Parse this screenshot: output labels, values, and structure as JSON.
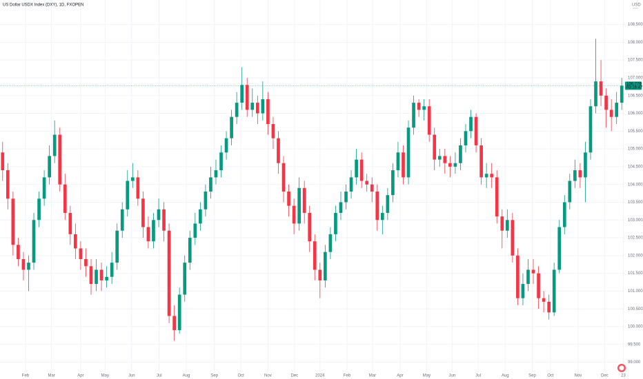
{
  "chart_data": {
    "type": "candlestick",
    "title": "US Dollar USDX Index (DXY), 1D, FXOPEN",
    "currency": "USD",
    "countdown": "03:16:47",
    "up_color": "#089981",
    "down_color": "#f23645",
    "grid": true,
    "x": [
      0,
      1,
      2,
      3,
      4,
      5,
      6,
      7,
      8,
      9,
      10,
      11,
      12,
      13,
      14,
      15,
      16,
      17,
      18,
      19,
      20,
      21,
      22,
      23,
      24,
      25,
      26,
      27,
      28,
      29,
      30,
      31,
      32,
      33,
      34,
      35,
      36,
      37,
      38,
      39,
      40,
      41,
      42,
      43,
      44,
      45,
      46,
      47,
      48,
      49,
      50,
      51,
      52,
      53,
      54,
      55,
      56,
      57,
      58,
      59,
      60,
      61,
      62,
      63,
      64,
      65,
      66,
      67,
      68,
      69,
      70,
      71,
      72,
      73,
      74,
      75,
      76,
      77,
      78,
      79,
      80,
      81,
      82,
      83,
      84,
      85,
      86,
      87,
      88,
      89,
      90,
      91,
      92,
      93,
      94,
      95,
      96,
      97,
      98,
      99,
      100,
      101,
      102,
      103,
      104,
      105,
      106,
      107,
      108,
      109,
      110,
      111,
      112,
      113,
      114,
      115,
      116,
      117,
      118,
      119
    ],
    "open": [
      104.9,
      104.4,
      103.6,
      102.3,
      101.9,
      101.6,
      101.8,
      103.0,
      103.6,
      104.2,
      104.8,
      105.4,
      104.0,
      103.2,
      102.6,
      102.2,
      101.9,
      101.7,
      101.2,
      101.6,
      101.3,
      101.4,
      101.8,
      102.7,
      103.3,
      104.1,
      104.2,
      103.6,
      102.8,
      102.4,
      103.0,
      103.3,
      102.7,
      100.3,
      99.9,
      100.9,
      101.8,
      102.5,
      102.9,
      103.3,
      103.8,
      104.2,
      104.4,
      104.9,
      105.3,
      105.9,
      106.3,
      106.8,
      106.1,
      106.3,
      106.0,
      106.4,
      105.7,
      105.3,
      104.6,
      103.8,
      103.4,
      102.9,
      103.9,
      103.2,
      102.4,
      101.6,
      101.3,
      102.1,
      102.6,
      103.2,
      103.5,
      103.8,
      104.2,
      104.7,
      104.1,
      104.0,
      103.8,
      103.0,
      103.2,
      103.7,
      104.4,
      104.9,
      104.2,
      105.6,
      106.3,
      106.1,
      106.2,
      105.4,
      104.7,
      104.8,
      104.6,
      104.5,
      104.6,
      105.1,
      105.5,
      105.9,
      105.1,
      104.2,
      104.3,
      104.2,
      103.1,
      102.7,
      103.0,
      102.0,
      100.8,
      101.2,
      101.6,
      101.5,
      100.8,
      100.7,
      100.4,
      101.6,
      102.8,
      103.5,
      104.1,
      104.4,
      104.2,
      104.9,
      106.2,
      106.9,
      106.5,
      106.1,
      105.9,
      106.3
    ],
    "high": [
      105.2,
      104.6,
      103.8,
      102.5,
      102.1,
      102.0,
      103.2,
      103.8,
      104.4,
      105.1,
      105.8,
      105.6,
      104.3,
      103.4,
      102.9,
      102.4,
      102.2,
      101.9,
      101.9,
      101.8,
      101.7,
      102.1,
      102.9,
      103.5,
      104.4,
      104.6,
      104.4,
      103.8,
      103.1,
      103.2,
      103.6,
      103.5,
      102.9,
      100.6,
      101.1,
      102.0,
      102.7,
      103.2,
      103.5,
      104.0,
      104.5,
      104.7,
      105.1,
      105.5,
      106.1,
      106.6,
      107.3,
      107.0,
      106.7,
      106.5,
      106.9,
      106.6,
      105.9,
      105.5,
      104.8,
      104.0,
      103.6,
      104.2,
      104.1,
      103.4,
      102.6,
      101.8,
      102.3,
      102.8,
      103.4,
      103.8,
      104.0,
      104.4,
      105.0,
      104.9,
      104.3,
      104.2,
      104.0,
      103.4,
      103.9,
      104.6,
      105.2,
      105.1,
      105.8,
      106.5,
      106.4,
      106.4,
      106.4,
      105.6,
      105.0,
      105.0,
      104.8,
      104.9,
      105.3,
      105.7,
      106.1,
      106.0,
      105.3,
      104.6,
      104.6,
      104.4,
      103.3,
      103.3,
      103.2,
      102.2,
      101.5,
      101.9,
      101.9,
      101.7,
      101.0,
      100.9,
      101.8,
      103.0,
      103.7,
      104.3,
      104.7,
      104.6,
      105.2,
      106.4,
      108.1,
      107.5,
      106.7,
      106.4,
      106.6,
      107.0
    ],
    "low": [
      104.1,
      103.3,
      102.0,
      101.7,
      101.3,
      101.0,
      101.6,
      102.8,
      103.4,
      104.0,
      104.6,
      103.8,
      103.0,
      102.3,
      101.9,
      101.6,
      101.4,
      100.9,
      101.0,
      101.0,
      101.1,
      101.2,
      101.6,
      102.5,
      103.1,
      103.9,
      103.4,
      102.5,
      102.2,
      102.2,
      102.8,
      102.4,
      100.1,
      99.6,
      99.8,
      100.7,
      101.6,
      102.3,
      102.7,
      103.1,
      103.6,
      104.0,
      104.2,
      104.7,
      105.1,
      105.7,
      106.1,
      105.9,
      105.9,
      105.7,
      105.8,
      105.4,
      105.0,
      104.3,
      103.5,
      103.1,
      102.6,
      102.7,
      102.9,
      102.1,
      101.3,
      100.8,
      101.1,
      101.9,
      102.4,
      103.0,
      103.3,
      103.6,
      104.0,
      103.9,
      103.8,
      103.5,
      102.7,
      102.6,
      103.0,
      103.5,
      104.2,
      104.0,
      104.0,
      105.4,
      105.9,
      105.8,
      105.2,
      104.4,
      104.5,
      104.3,
      104.2,
      104.3,
      104.4,
      104.9,
      105.3,
      104.9,
      104.0,
      103.9,
      103.9,
      102.9,
      102.2,
      102.5,
      101.8,
      100.6,
      100.6,
      101.0,
      101.2,
      100.5,
      100.4,
      100.2,
      100.3,
      101.5,
      102.6,
      103.3,
      103.9,
      103.9,
      103.5,
      104.7,
      106.0,
      106.2,
      105.6,
      105.5,
      105.7,
      106.1
    ],
    "close": [
      104.4,
      103.6,
      102.3,
      101.9,
      101.6,
      101.8,
      103.0,
      103.6,
      104.2,
      104.8,
      105.4,
      104.0,
      103.2,
      102.6,
      102.2,
      101.9,
      101.7,
      101.2,
      101.6,
      101.3,
      101.4,
      101.8,
      102.7,
      103.3,
      104.1,
      104.2,
      103.6,
      102.8,
      102.4,
      103.0,
      103.3,
      102.7,
      100.3,
      99.9,
      100.9,
      101.8,
      102.5,
      102.9,
      103.3,
      103.8,
      104.2,
      104.4,
      104.9,
      105.3,
      105.9,
      106.3,
      106.8,
      106.1,
      106.3,
      106.0,
      106.4,
      105.7,
      105.3,
      104.6,
      103.8,
      103.4,
      102.9,
      103.9,
      103.2,
      102.4,
      101.6,
      101.3,
      102.1,
      102.6,
      103.2,
      103.5,
      103.8,
      104.2,
      104.7,
      104.1,
      104.0,
      103.8,
      103.0,
      103.2,
      103.7,
      104.4,
      104.9,
      104.2,
      105.6,
      106.3,
      106.1,
      106.2,
      105.4,
      104.7,
      104.8,
      104.6,
      104.5,
      104.6,
      105.1,
      105.5,
      105.9,
      105.1,
      104.2,
      104.3,
      104.2,
      103.1,
      102.7,
      103.0,
      102.0,
      100.8,
      101.2,
      101.6,
      101.5,
      100.8,
      100.7,
      100.4,
      101.6,
      102.8,
      103.5,
      104.1,
      104.4,
      104.2,
      104.9,
      106.2,
      106.9,
      106.5,
      106.1,
      105.9,
      106.3,
      106.779
    ],
    "xlim": [
      -0.5,
      119.5
    ],
    "xticks": [
      {
        "value": 4.4,
        "label": "Feb"
      },
      {
        "value": 9.4,
        "label": "Mar"
      },
      {
        "value": 15.0,
        "label": "Apr"
      },
      {
        "value": 19.7,
        "label": "May"
      },
      {
        "value": 24.8,
        "label": "Jun"
      },
      {
        "value": 30.1,
        "label": "Jul"
      },
      {
        "value": 35.3,
        "label": "Aug"
      },
      {
        "value": 40.7,
        "label": "Sep"
      },
      {
        "value": 45.8,
        "label": "Oct"
      },
      {
        "value": 51.0,
        "label": "Nov"
      },
      {
        "value": 56.1,
        "label": "Dec"
      },
      {
        "value": 61.0,
        "label": "2024"
      },
      {
        "value": 66.2,
        "label": "Feb"
      },
      {
        "value": 71.1,
        "label": "Mar"
      },
      {
        "value": 76.4,
        "label": "Apr"
      },
      {
        "value": 81.5,
        "label": "May"
      },
      {
        "value": 86.4,
        "label": "Jun"
      },
      {
        "value": 91.4,
        "label": "Jul"
      },
      {
        "value": 96.6,
        "label": "Aug"
      },
      {
        "value": 101.8,
        "label": "Sep"
      },
      {
        "value": 105.3,
        "label": "Oct"
      },
      {
        "value": 110.6,
        "label": "Nov"
      },
      {
        "value": 115.7,
        "label": "Dec"
      },
      {
        "value": 119.3,
        "label": "23"
      }
    ],
    "ylim": [
      98.72,
      109.19
    ],
    "yticks": [
      {
        "value": 99,
        "label": "99.000"
      },
      {
        "value": 99.5,
        "label": "99.500"
      },
      {
        "value": 100,
        "label": "100.000"
      },
      {
        "value": 100.5,
        "label": "100.500"
      },
      {
        "value": 101,
        "label": "101.000"
      },
      {
        "value": 101.5,
        "label": "101.500"
      },
      {
        "value": 102,
        "label": "102.000"
      },
      {
        "value": 102.5,
        "label": "102.500"
      },
      {
        "value": 103,
        "label": "103.000"
      },
      {
        "value": 103.5,
        "label": "103.500"
      },
      {
        "value": 104,
        "label": "104.000"
      },
      {
        "value": 104.5,
        "label": "104.500"
      },
      {
        "value": 105,
        "label": "105.000"
      },
      {
        "value": 105.5,
        "label": "105.500"
      },
      {
        "value": 106,
        "label": "106.000"
      },
      {
        "value": 106.5,
        "label": "106.500"
      },
      {
        "value": 107,
        "label": "107.000"
      },
      {
        "value": 107.5,
        "label": "107.500"
      },
      {
        "value": 108,
        "label": "108.000"
      },
      {
        "value": 108.5,
        "label": "108.500"
      }
    ]
  }
}
